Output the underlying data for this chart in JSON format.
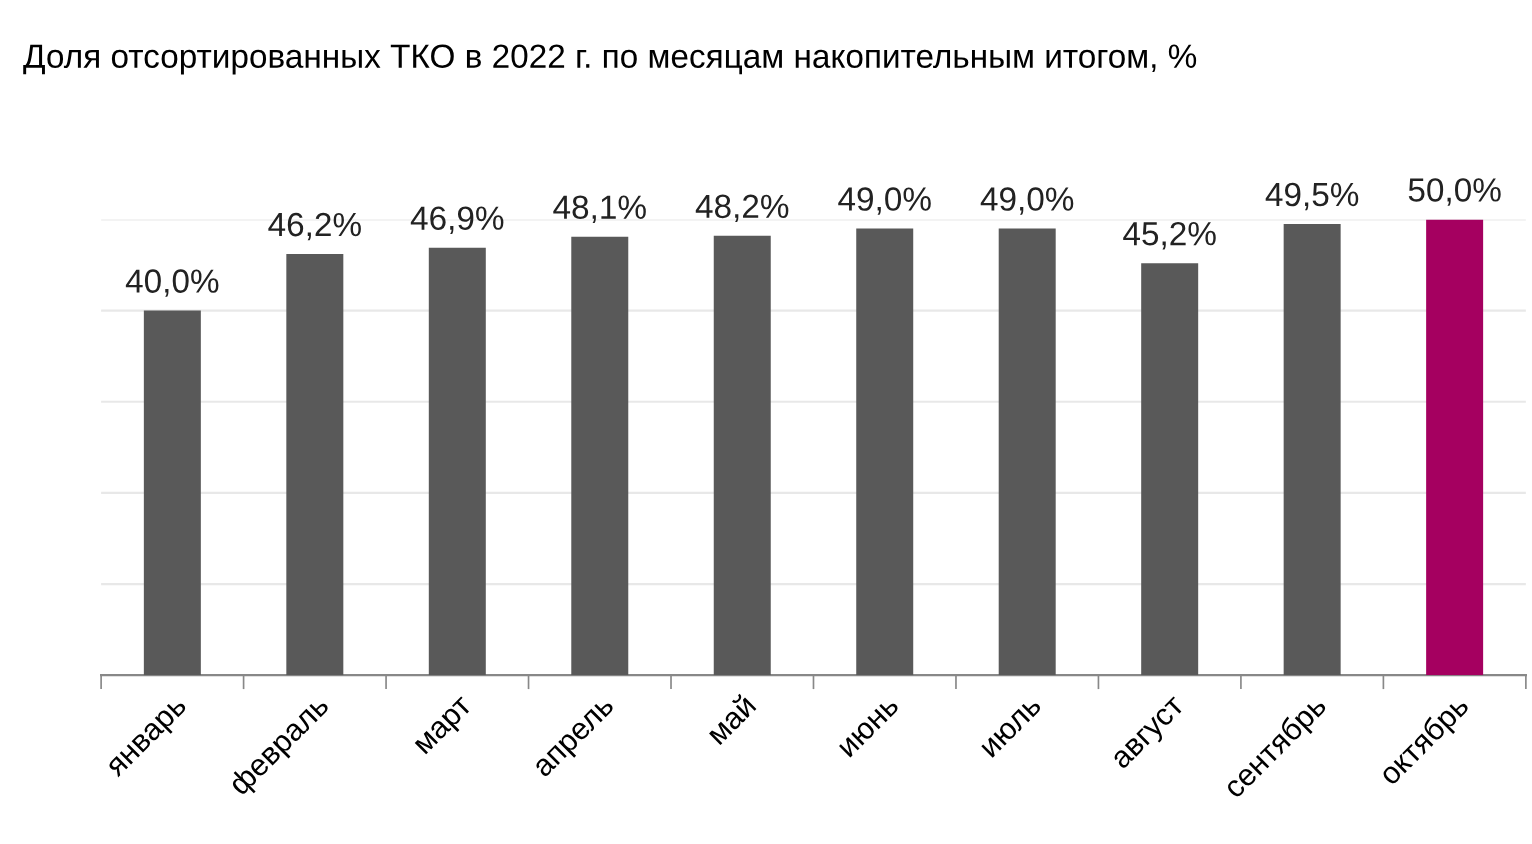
{
  "chart_data": {
    "type": "bar",
    "title": "Доля отсортированных ТКО в 2022 г. по месяцам накопительным итогом, %",
    "categories": [
      "январь",
      "февраль",
      "март",
      "апрель",
      "май",
      "июнь",
      "июль",
      "август",
      "сентябрь",
      "октябрь"
    ],
    "values": [
      40.0,
      46.2,
      46.9,
      48.1,
      48.2,
      49.0,
      49.0,
      45.2,
      49.5,
      50.0
    ],
    "colors": [
      "#595959",
      "#595959",
      "#595959",
      "#595959",
      "#595959",
      "#595959",
      "#595959",
      "#595959",
      "#595959",
      "#a50060"
    ],
    "value_labels": [
      "40,0%",
      "46,2%",
      "46,9%",
      "48,1%",
      "48,2%",
      "49,0%",
      "49,0%",
      "45,2%",
      "49,5%",
      "50,0%"
    ],
    "ylim": [
      0,
      50
    ],
    "yticks": [
      {
        "value": 0,
        "label": null
      },
      {
        "value": 10,
        "label": null
      },
      {
        "value": 20,
        "label": null
      },
      {
        "value": 30,
        "label": null
      },
      {
        "value": 40,
        "label": null
      },
      {
        "value": 50,
        "label": null
      }
    ],
    "tick_labels": "x",
    "grid": "y",
    "legend": false
  }
}
